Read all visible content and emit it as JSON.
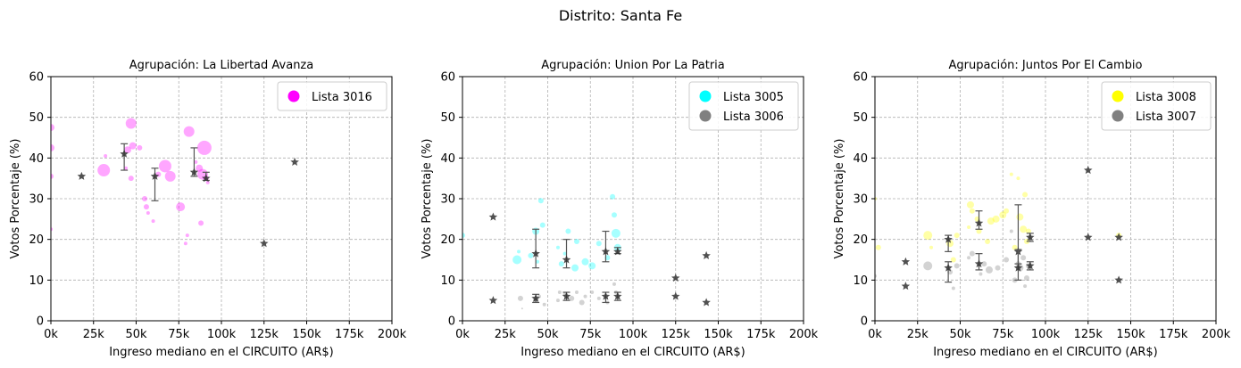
{
  "page_title": "Distrito: Santa Fe",
  "chart_data": [
    {
      "type": "scatter",
      "title": "Agrupación: La Libertad Avanza",
      "xlabel": "Ingreso mediano en el CIRCUITO (AR$)",
      "ylabel": "Votos Porcentaje (%)",
      "xlim": [
        0,
        200000
      ],
      "ylim": [
        0,
        60
      ],
      "xticks": [
        0,
        25000,
        50000,
        75000,
        100000,
        125000,
        150000,
        175000,
        200000
      ],
      "xtick_labels": [
        "0k",
        "25k",
        "50k",
        "75k",
        "100k",
        "125k",
        "150k",
        "175k",
        "200k"
      ],
      "yticks": [
        0,
        10,
        20,
        30,
        40,
        50,
        60
      ],
      "ytick_labels": [
        "0",
        "10",
        "20",
        "30",
        "40",
        "50",
        "60"
      ],
      "grid": true,
      "legend_position": "top-right",
      "series": [
        {
          "name": "Lista 3016",
          "color": "#ff00ff",
          "points": [
            {
              "x": 0,
              "y": 47.5,
              "s": 4
            },
            {
              "x": 0,
              "y": 42.5,
              "s": 4
            },
            {
              "x": 0,
              "y": 35.5,
              "s": 3
            },
            {
              "x": 0,
              "y": 22.5,
              "s": 2
            },
            {
              "x": 31000,
              "y": 37,
              "s": 7
            },
            {
              "x": 32000,
              "y": 40.5,
              "s": 2
            },
            {
              "x": 44000,
              "y": 37.5,
              "s": 2
            },
            {
              "x": 45000,
              "y": 42,
              "s": 4
            },
            {
              "x": 47000,
              "y": 48.5,
              "s": 6
            },
            {
              "x": 47000,
              "y": 35,
              "s": 3
            },
            {
              "x": 48000,
              "y": 43,
              "s": 4
            },
            {
              "x": 52000,
              "y": 42.5,
              "s": 3
            },
            {
              "x": 55000,
              "y": 30,
              "s": 3
            },
            {
              "x": 56000,
              "y": 28,
              "s": 3
            },
            {
              "x": 57000,
              "y": 26.5,
              "s": 2
            },
            {
              "x": 60000,
              "y": 24.5,
              "s": 2
            },
            {
              "x": 63000,
              "y": 36,
              "s": 3
            },
            {
              "x": 67000,
              "y": 38,
              "s": 7
            },
            {
              "x": 70000,
              "y": 35.5,
              "s": 6
            },
            {
              "x": 76000,
              "y": 28,
              "s": 5
            },
            {
              "x": 79000,
              "y": 19,
              "s": 2
            },
            {
              "x": 80000,
              "y": 21,
              "s": 2
            },
            {
              "x": 81000,
              "y": 46.5,
              "s": 6
            },
            {
              "x": 85000,
              "y": 39,
              "s": 2
            },
            {
              "x": 87000,
              "y": 37.5,
              "s": 4
            },
            {
              "x": 88000,
              "y": 24,
              "s": 3
            },
            {
              "x": 89000,
              "y": 36,
              "s": 6
            },
            {
              "x": 90000,
              "y": 42.5,
              "s": 8
            },
            {
              "x": 91000,
              "y": 35,
              "s": 3
            },
            {
              "x": 92000,
              "y": 34,
              "s": 2
            }
          ]
        }
      ],
      "medians": {
        "color": "#333333",
        "points": [
          {
            "x": 18000,
            "y": 35.5
          },
          {
            "x": 43000,
            "y": 41,
            "low": 37,
            "high": 43.5
          },
          {
            "x": 61000,
            "y": 35.5,
            "low": 29.5,
            "high": 37.5
          },
          {
            "x": 84000,
            "y": 36.5,
            "low": 35.5,
            "high": 42.5
          },
          {
            "x": 91000,
            "y": 35,
            "low": 34.5,
            "high": 36.5
          },
          {
            "x": 125000,
            "y": 19
          },
          {
            "x": 143000,
            "y": 39
          }
        ]
      }
    },
    {
      "type": "scatter",
      "title": "Agrupación: Union Por La Patria",
      "xlabel": "Ingreso mediano en el CIRCUITO (AR$)",
      "ylabel": "Votos Porcentaje (%)",
      "xlim": [
        0,
        200000
      ],
      "ylim": [
        0,
        60
      ],
      "xticks": [
        0,
        25000,
        50000,
        75000,
        100000,
        125000,
        150000,
        175000,
        200000
      ],
      "xtick_labels": [
        "0k",
        "25k",
        "50k",
        "75k",
        "100k",
        "125k",
        "150k",
        "175k",
        "200k"
      ],
      "yticks": [
        0,
        10,
        20,
        30,
        40,
        50,
        60
      ],
      "ytick_labels": [
        "0",
        "10",
        "20",
        "30",
        "40",
        "50",
        "60"
      ],
      "grid": true,
      "legend_position": "top-right",
      "series": [
        {
          "name": "Lista 3005",
          "color": "#00ffff",
          "points": [
            {
              "x": 0,
              "y": 21,
              "s": 3
            },
            {
              "x": 32000,
              "y": 15,
              "s": 5
            },
            {
              "x": 33000,
              "y": 17,
              "s": 2
            },
            {
              "x": 40000,
              "y": 16,
              "s": 3
            },
            {
              "x": 43000,
              "y": 22,
              "s": 4
            },
            {
              "x": 44000,
              "y": 14.5,
              "s": 2
            },
            {
              "x": 46000,
              "y": 29.5,
              "s": 3
            },
            {
              "x": 47000,
              "y": 23.5,
              "s": 3
            },
            {
              "x": 56000,
              "y": 18,
              "s": 2
            },
            {
              "x": 58000,
              "y": 14,
              "s": 3
            },
            {
              "x": 60000,
              "y": 16.5,
              "s": 2
            },
            {
              "x": 62000,
              "y": 22,
              "s": 3
            },
            {
              "x": 66000,
              "y": 13,
              "s": 4
            },
            {
              "x": 67000,
              "y": 19.5,
              "s": 3
            },
            {
              "x": 72000,
              "y": 14.5,
              "s": 4
            },
            {
              "x": 76000,
              "y": 13.5,
              "s": 4
            },
            {
              "x": 80000,
              "y": 19,
              "s": 3
            },
            {
              "x": 85000,
              "y": 15.5,
              "s": 3
            },
            {
              "x": 88000,
              "y": 30.5,
              "s": 3
            },
            {
              "x": 89000,
              "y": 26,
              "s": 3
            },
            {
              "x": 90000,
              "y": 21.5,
              "s": 5
            },
            {
              "x": 91000,
              "y": 18,
              "s": 4
            }
          ]
        },
        {
          "name": "Lista 3006",
          "color": "#808080",
          "points": [
            {
              "x": 34000,
              "y": 5.5,
              "s": 3
            },
            {
              "x": 35000,
              "y": 3,
              "s": 1
            },
            {
              "x": 43000,
              "y": 5,
              "s": 3
            },
            {
              "x": 45000,
              "y": 6,
              "s": 2
            },
            {
              "x": 48000,
              "y": 4,
              "s": 2
            },
            {
              "x": 56000,
              "y": 5,
              "s": 2
            },
            {
              "x": 57000,
              "y": 7,
              "s": 2
            },
            {
              "x": 60000,
              "y": 6.5,
              "s": 2
            },
            {
              "x": 64000,
              "y": 5.5,
              "s": 3
            },
            {
              "x": 67000,
              "y": 7,
              "s": 2
            },
            {
              "x": 70000,
              "y": 4.5,
              "s": 3
            },
            {
              "x": 72000,
              "y": 6,
              "s": 2
            },
            {
              "x": 76000,
              "y": 7,
              "s": 2
            },
            {
              "x": 80000,
              "y": 5.5,
              "s": 2
            },
            {
              "x": 85000,
              "y": 4.5,
              "s": 2
            },
            {
              "x": 89000,
              "y": 9,
              "s": 2
            },
            {
              "x": 90000,
              "y": 7,
              "s": 2
            }
          ]
        }
      ],
      "medians": {
        "color": "#333333",
        "points": [
          {
            "x": 18000,
            "y": 25.5
          },
          {
            "x": 18000,
            "y": 5
          },
          {
            "x": 43000,
            "y": 16.5,
            "low": 13,
            "high": 22.5
          },
          {
            "x": 43000,
            "y": 5.5,
            "low": 4.5,
            "high": 6.5
          },
          {
            "x": 61000,
            "y": 15,
            "low": 13,
            "high": 20
          },
          {
            "x": 61000,
            "y": 6,
            "low": 5,
            "high": 7
          },
          {
            "x": 84000,
            "y": 17,
            "low": 14.5,
            "high": 22
          },
          {
            "x": 84000,
            "y": 6,
            "low": 4.5,
            "high": 7
          },
          {
            "x": 91000,
            "y": 17,
            "low": 16.5,
            "high": 18
          },
          {
            "x": 91000,
            "y": 6,
            "low": 5,
            "high": 7
          },
          {
            "x": 125000,
            "y": 10.5
          },
          {
            "x": 125000,
            "y": 6
          },
          {
            "x": 143000,
            "y": 16
          },
          {
            "x": 143000,
            "y": 4.5
          }
        ]
      }
    },
    {
      "type": "scatter",
      "title": "Agrupación: Juntos Por El Cambio",
      "xlabel": "Ingreso mediano en el CIRCUITO (AR$)",
      "ylabel": "Votos Porcentaje (%)",
      "xlim": [
        0,
        200000
      ],
      "ylim": [
        0,
        60
      ],
      "xticks": [
        0,
        25000,
        50000,
        75000,
        100000,
        125000,
        150000,
        175000,
        200000
      ],
      "xtick_labels": [
        "0k",
        "25k",
        "50k",
        "75k",
        "100k",
        "125k",
        "150k",
        "175k",
        "200k"
      ],
      "yticks": [
        0,
        10,
        20,
        30,
        40,
        50,
        60
      ],
      "ytick_labels": [
        "0",
        "10",
        "20",
        "30",
        "40",
        "50",
        "60"
      ],
      "grid": true,
      "legend_position": "top-right",
      "series": [
        {
          "name": "Lista 3008",
          "color": "#ffff00",
          "points": [
            {
              "x": 0,
              "y": 30,
              "s": 2
            },
            {
              "x": 2000,
              "y": 18,
              "s": 3
            },
            {
              "x": 31000,
              "y": 21,
              "s": 5
            },
            {
              "x": 33000,
              "y": 18,
              "s": 2
            },
            {
              "x": 44000,
              "y": 19,
              "s": 4
            },
            {
              "x": 46000,
              "y": 15,
              "s": 3
            },
            {
              "x": 48000,
              "y": 21,
              "s": 3
            },
            {
              "x": 55000,
              "y": 23,
              "s": 2
            },
            {
              "x": 56000,
              "y": 28.5,
              "s": 4
            },
            {
              "x": 57000,
              "y": 27,
              "s": 3
            },
            {
              "x": 60000,
              "y": 25,
              "s": 3
            },
            {
              "x": 61000,
              "y": 22,
              "s": 3
            },
            {
              "x": 66000,
              "y": 19.5,
              "s": 3
            },
            {
              "x": 68000,
              "y": 24.5,
              "s": 4
            },
            {
              "x": 71000,
              "y": 25,
              "s": 4
            },
            {
              "x": 75000,
              "y": 26,
              "s": 4
            },
            {
              "x": 77000,
              "y": 27,
              "s": 3
            },
            {
              "x": 80000,
              "y": 36,
              "s": 2
            },
            {
              "x": 82000,
              "y": 18,
              "s": 3
            },
            {
              "x": 84000,
              "y": 35,
              "s": 2
            },
            {
              "x": 85000,
              "y": 25.5,
              "s": 4
            },
            {
              "x": 87000,
              "y": 22.5,
              "s": 4
            },
            {
              "x": 88000,
              "y": 31,
              "s": 3
            },
            {
              "x": 89000,
              "y": 19.5,
              "s": 3
            },
            {
              "x": 90000,
              "y": 22,
              "s": 3
            },
            {
              "x": 143000,
              "y": 21,
              "s": 3
            }
          ]
        },
        {
          "name": "Lista 3007",
          "color": "#808080",
          "points": [
            {
              "x": 0,
              "y": 11,
              "s": 2
            },
            {
              "x": 31000,
              "y": 13.5,
              "s": 5
            },
            {
              "x": 44000,
              "y": 12,
              "s": 3
            },
            {
              "x": 46000,
              "y": 8,
              "s": 2
            },
            {
              "x": 48000,
              "y": 13.5,
              "s": 3
            },
            {
              "x": 55000,
              "y": 15.5,
              "s": 2
            },
            {
              "x": 57000,
              "y": 16.5,
              "s": 3
            },
            {
              "x": 62000,
              "y": 11.5,
              "s": 2
            },
            {
              "x": 64000,
              "y": 14,
              "s": 3
            },
            {
              "x": 67000,
              "y": 12.5,
              "s": 4
            },
            {
              "x": 72000,
              "y": 13,
              "s": 3
            },
            {
              "x": 77000,
              "y": 15,
              "s": 3
            },
            {
              "x": 80000,
              "y": 22,
              "s": 2
            },
            {
              "x": 82000,
              "y": 10,
              "s": 3
            },
            {
              "x": 84000,
              "y": 14,
              "s": 3
            },
            {
              "x": 85000,
              "y": 13,
              "s": 4
            },
            {
              "x": 87000,
              "y": 15.5,
              "s": 3
            },
            {
              "x": 88000,
              "y": 8.5,
              "s": 2
            },
            {
              "x": 89000,
              "y": 10.5,
              "s": 3
            },
            {
              "x": 90000,
              "y": 13.5,
              "s": 3
            }
          ]
        }
      ],
      "medians": {
        "color": "#333333",
        "points": [
          {
            "x": 18000,
            "y": 14.5
          },
          {
            "x": 18000,
            "y": 8.5
          },
          {
            "x": 43000,
            "y": 20,
            "low": 17,
            "high": 21
          },
          {
            "x": 43000,
            "y": 13,
            "low": 9.5,
            "high": 14.5
          },
          {
            "x": 61000,
            "y": 24,
            "low": 22.5,
            "high": 27
          },
          {
            "x": 61000,
            "y": 14,
            "low": 12.5,
            "high": 16.5
          },
          {
            "x": 84000,
            "y": 17,
            "low": 14,
            "high": 28.5
          },
          {
            "x": 84000,
            "y": 13,
            "low": 10,
            "high": 17.5
          },
          {
            "x": 91000,
            "y": 20.5,
            "low": 19.5,
            "high": 21.5
          },
          {
            "x": 91000,
            "y": 13.5,
            "low": 12.5,
            "high": 14.5
          },
          {
            "x": 125000,
            "y": 37
          },
          {
            "x": 125000,
            "y": 20.5
          },
          {
            "x": 143000,
            "y": 20.5
          },
          {
            "x": 143000,
            "y": 10
          }
        ]
      }
    }
  ]
}
